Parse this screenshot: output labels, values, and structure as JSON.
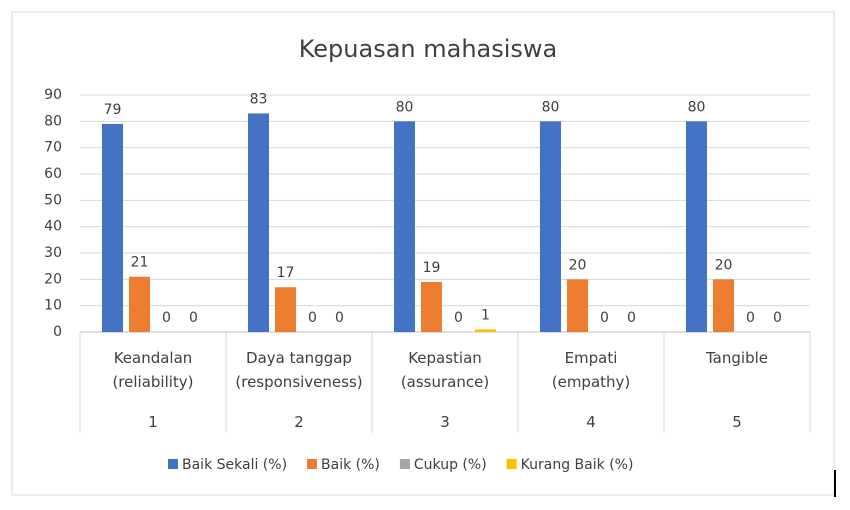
{
  "chart_data": {
    "type": "bar",
    "title": "Kepuasan mahasiswa",
    "categories": [
      "Keandalan (reliability)",
      "Daya tanggap (responsiveness)",
      "Kepastian (assurance)",
      "Empati (empathy)",
      "Tangible"
    ],
    "category_groups": [
      "1",
      "2",
      "3",
      "4",
      "5"
    ],
    "series": [
      {
        "name": "Baik Sekali (%)",
        "color": "#4472c4",
        "values": [
          79,
          83,
          80,
          80,
          80
        ]
      },
      {
        "name": "Baik (%)",
        "color": "#ed7d31",
        "values": [
          21,
          17,
          19,
          20,
          20
        ]
      },
      {
        "name": "Cukup (%)",
        "color": "#a5a5a5",
        "values": [
          0,
          0,
          0,
          0,
          0
        ]
      },
      {
        "name": "Kurang Baik (%)",
        "color": "#ffc000",
        "values": [
          0,
          0,
          1,
          0,
          0
        ]
      }
    ],
    "ylim": [
      0,
      90
    ],
    "yticks": [
      0,
      10,
      20,
      30,
      40,
      50,
      60,
      70,
      80,
      90
    ],
    "grid": true,
    "legend": "bottom"
  }
}
